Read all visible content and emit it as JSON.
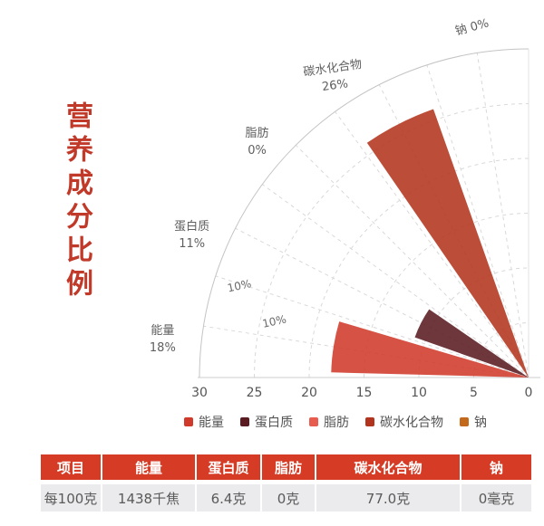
{
  "title": {
    "text": "营养成分比例",
    "color": "#c13928"
  },
  "chart_data": {
    "type": "bar",
    "variant": "polar-fan",
    "layout": "quarter circle, pole at bottom-right, bars sweep from horizontal (right category) to vertical (top category)",
    "categories": [
      "能量",
      "蛋白质",
      "脂肪",
      "碳水化合物",
      "钠"
    ],
    "values": [
      18,
      11,
      0,
      26,
      0
    ],
    "value_unit": "%NRV",
    "series_colors": [
      "#cf3a2a",
      "#5a1b21",
      "#e85c50",
      "#b3341e",
      "#c2691c"
    ],
    "radial_axis": {
      "min": 0,
      "max": 30,
      "interval": 5,
      "tick_labels": [
        "30",
        "25",
        "20",
        "15",
        "10",
        "5",
        "0"
      ]
    },
    "angular_span_deg": 90,
    "grid": {
      "dashed_radial_line_step_deg": 9,
      "dashed_arc_step": 5,
      "grid_on": true
    },
    "category_labels": [
      {
        "name": "能量",
        "value_label": "18%"
      },
      {
        "name": "蛋白质",
        "value_label": "11%"
      },
      {
        "name": "脂肪",
        "value_label": "0%"
      },
      {
        "name": "碳水化合物",
        "value_label": "26%"
      },
      {
        "name": "钠",
        "value_label": "0%",
        "single_line": true
      }
    ],
    "inner_annotations": [
      {
        "text": "10%",
        "angle_deg": 17.0,
        "radius": 27.5
      },
      {
        "text": "10%",
        "angle_deg": 11.7,
        "radius": 23.6
      }
    ]
  },
  "legend": {
    "items": [
      {
        "label": "能量",
        "color": "#cf3a2a"
      },
      {
        "label": "蛋白质",
        "color": "#5a1b21"
      },
      {
        "label": "脂肪",
        "color": "#e85c50"
      },
      {
        "label": "碳水化合物",
        "color": "#b3341e"
      },
      {
        "label": "钠",
        "color": "#c2691c"
      }
    ]
  },
  "table": {
    "headers": [
      "项目",
      "能量",
      "蛋白质",
      "脂肪",
      "碳水化合物",
      "钠"
    ],
    "rows": [
      [
        "每100克",
        "1438千焦",
        "6.4克",
        "0克",
        "77.0克",
        "0毫克"
      ]
    ],
    "header_bg": "#d63b25",
    "header_text_color": "#ffffff",
    "row_bg": "#ebebed",
    "row_text_color": "#5a5a5a"
  }
}
